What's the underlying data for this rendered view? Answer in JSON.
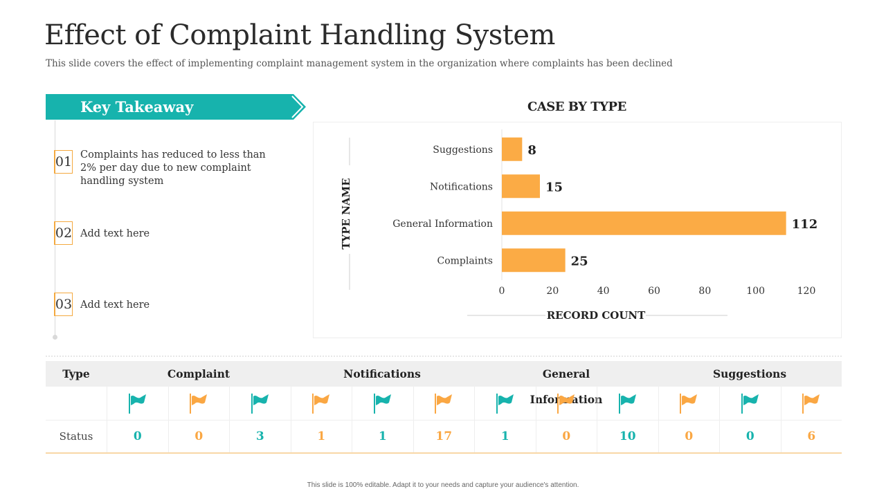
{
  "slide": {
    "title": "Effect of Complaint Handling System",
    "subtitle": "This slide covers the effect of implementing complaint management system in the organization where complaints has been declined",
    "footer": "This slide is 100% editable. Adapt it to your needs and capture your audience's attention."
  },
  "takeaway": {
    "heading": "Key Takeaway",
    "items": [
      {
        "num": "01",
        "text": "Complaints has reduced to less than 2% per day due to new complaint handling system"
      },
      {
        "num": "02",
        "text": "Add text here"
      },
      {
        "num": "03",
        "text": "Add text here"
      }
    ]
  },
  "colors": {
    "teal": "#17b3ad",
    "orange": "#faa743",
    "bar": "#fbab45"
  },
  "chart_data": {
    "type": "bar",
    "orientation": "horizontal",
    "title": "CASE BY TYPE",
    "xlabel": "RECORD COUNT",
    "ylabel": "TYPE NAME",
    "categories": [
      "Suggestions",
      "Notifications",
      "General Information",
      "Complaints"
    ],
    "values": [
      8,
      15,
      112,
      25
    ],
    "xlim": [
      0,
      120
    ],
    "xticks": [
      0,
      20,
      40,
      60,
      80,
      100,
      120
    ],
    "grid": false,
    "legend": "none"
  },
  "table": {
    "type_header": "Type",
    "status_label": "Status",
    "groups": [
      "Complaint",
      "Notifications",
      "General Information",
      "Suggestions"
    ],
    "flags": [
      "teal",
      "orange",
      "teal",
      "orange",
      "teal",
      "orange",
      "teal",
      "orange",
      "teal",
      "orange",
      "teal",
      "orange"
    ],
    "statuses": [
      "0",
      "0",
      "3",
      "1",
      "1",
      "17",
      "1",
      "0",
      "10",
      "0",
      "0",
      "6"
    ]
  }
}
